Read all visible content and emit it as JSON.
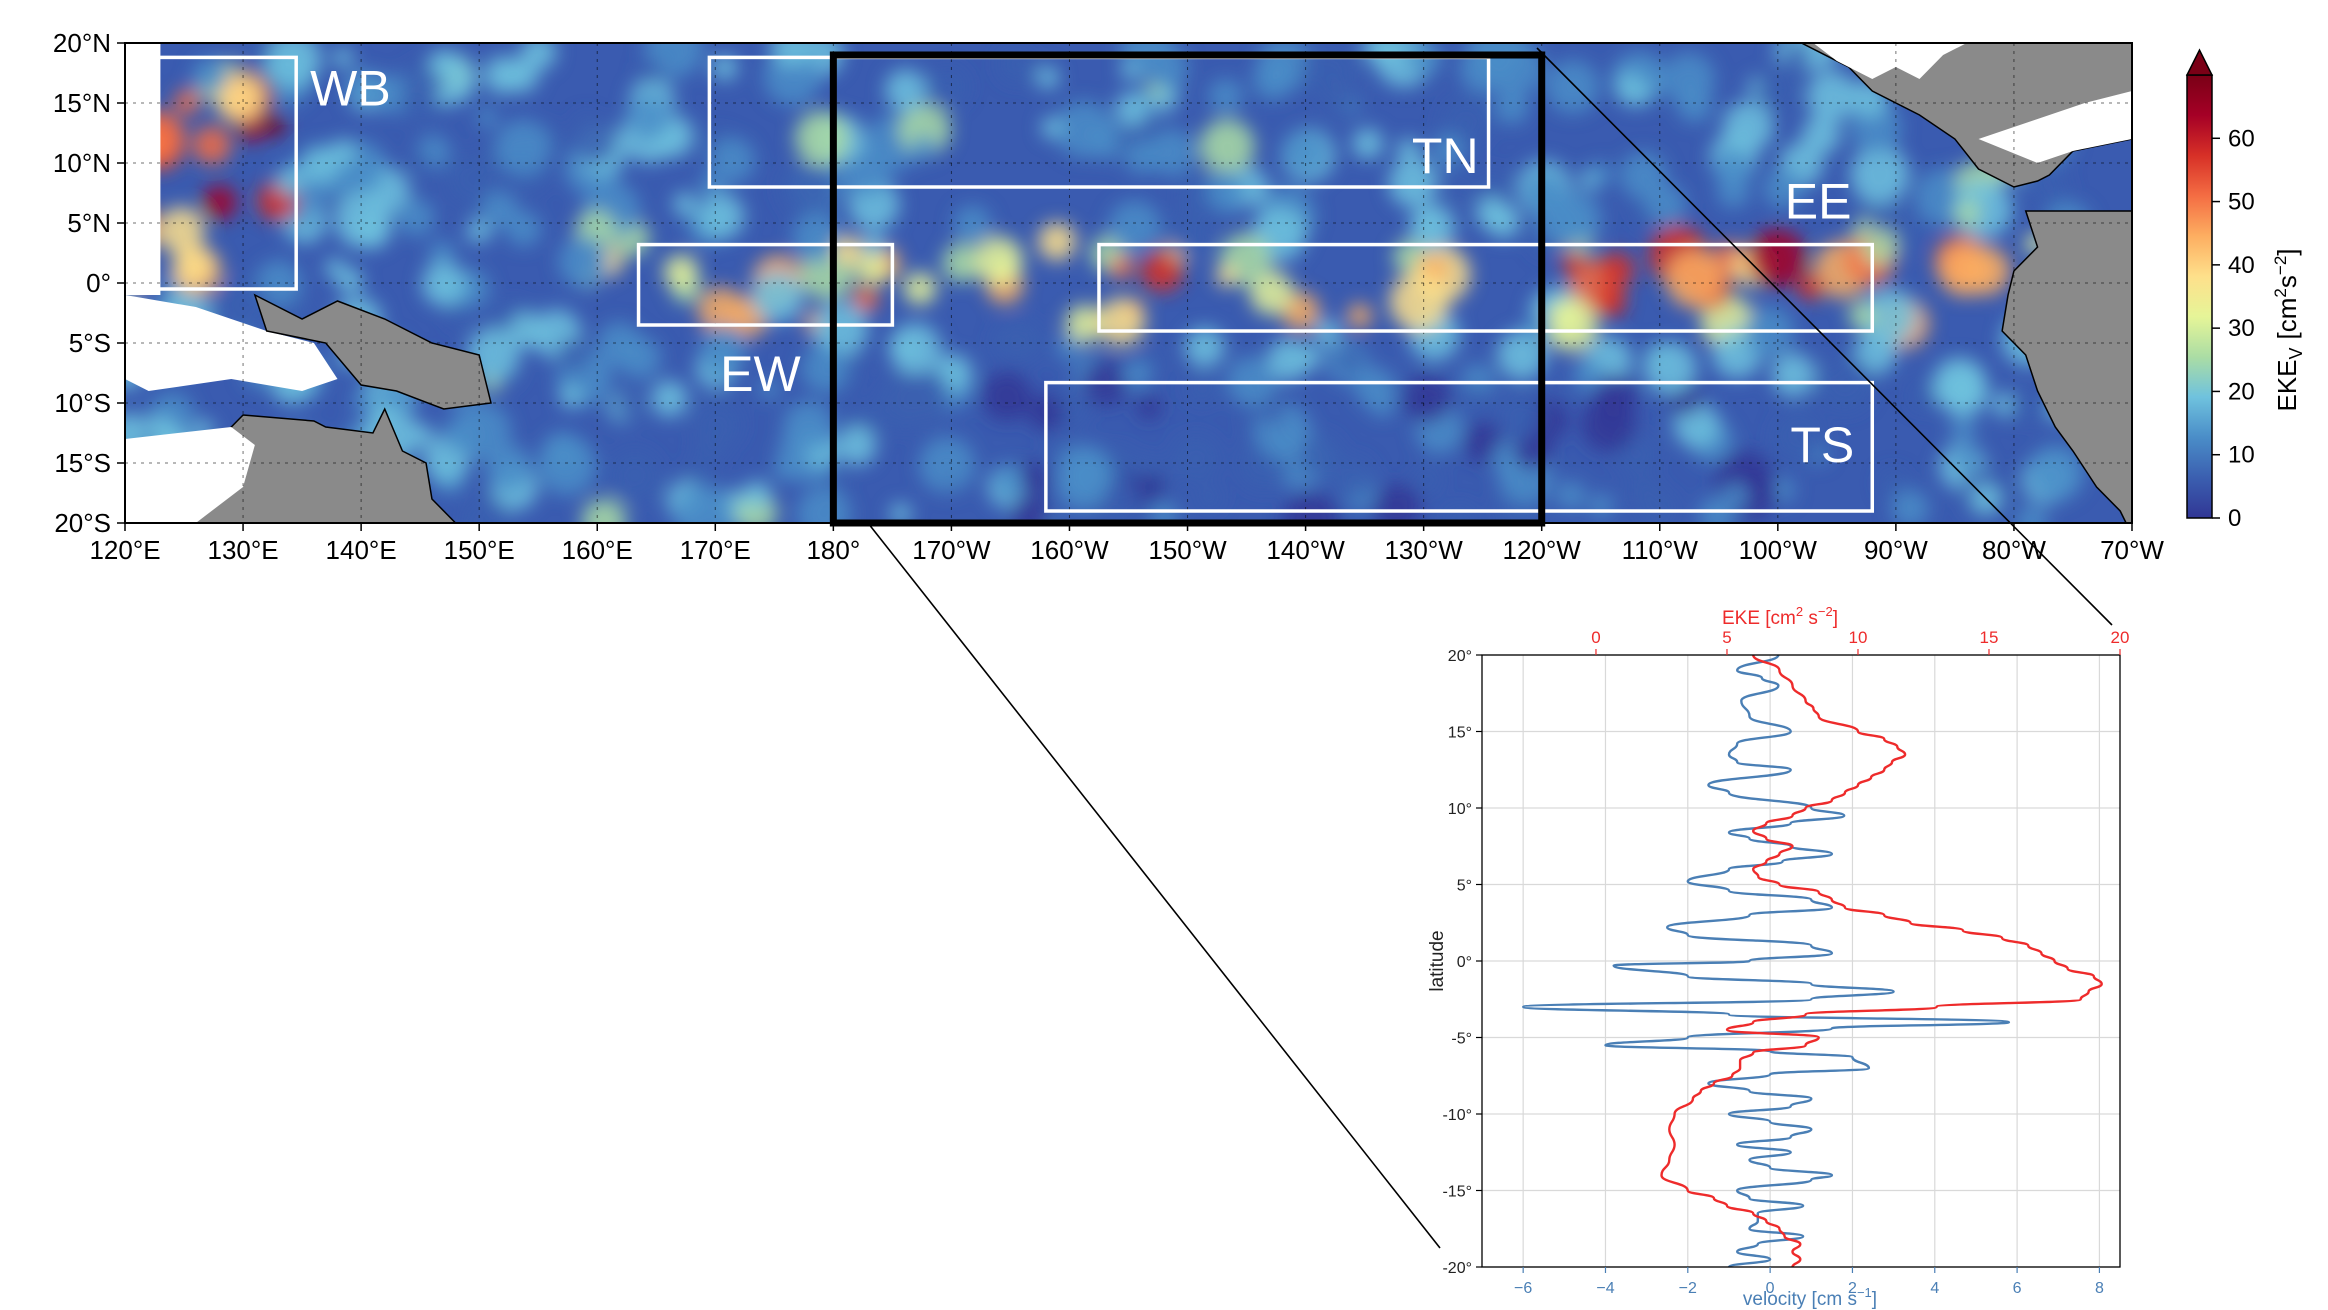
{
  "chart_data": [
    {
      "type": "heatmap",
      "title": "",
      "colorbar": {
        "label": "EKE",
        "label_sub": "V",
        "label_units_pre": "[cm",
        "label_units_exp1": "2",
        "label_units_mid": "s",
        "label_units_exp2": "−2",
        "label_units_post": "]",
        "ticks": [
          "0",
          "10",
          "20",
          "30",
          "40",
          "50",
          "60"
        ],
        "range": [
          0,
          70
        ],
        "extend": "max",
        "colormap": [
          "#313695",
          "#3b5fb0",
          "#4a8dc8",
          "#6fc2de",
          "#abdda4",
          "#e6f598",
          "#fee08b",
          "#fdae61",
          "#f46d43",
          "#d73027",
          "#a50026",
          "#7a0016"
        ]
      },
      "lat_ticks": [
        "20°N",
        "15°N",
        "10°N",
        "5°N",
        "0°",
        "5°S",
        "10°S",
        "15°S",
        "20°S"
      ],
      "lon_ticks": [
        "120°E",
        "130°E",
        "140°E",
        "150°E",
        "160°E",
        "170°E",
        "180°",
        "170°W",
        "160°W",
        "150°W",
        "140°W",
        "130°W",
        "120°W",
        "110°W",
        "100°W",
        "90°W",
        "80°W",
        "70°W"
      ],
      "extent": {
        "lon": [
          120,
          290
        ],
        "lat": [
          -20,
          20
        ]
      },
      "regions": [
        {
          "label": "WB",
          "lon": [
            122.5,
            134.5
          ],
          "lat": [
            -0.5,
            18.8
          ]
        },
        {
          "label": "TN",
          "lon": [
            169.5,
            235.5
          ],
          "lat": [
            8,
            18.8
          ]
        },
        {
          "label": "EW",
          "lon": [
            163.5,
            185
          ],
          "lat": [
            -3.5,
            3.2
          ]
        },
        {
          "label": "EE",
          "lon": [
            202.5,
            268
          ],
          "lat": [
            -4,
            3.2
          ]
        },
        {
          "label": "TS",
          "lon": [
            198,
            268
          ],
          "lat": [
            -19,
            -8.3
          ]
        }
      ],
      "highlight_box": {
        "lon": [
          180,
          240
        ],
        "lat": [
          -20,
          19
        ]
      },
      "grid": true
    },
    {
      "type": "line",
      "title": "",
      "ylabel": "latitude",
      "xlabel_bottom": "velocity [cm s",
      "xlabel_bottom_exp": "−1",
      "xlabel_bottom_post": "]",
      "xlabel_top": "EKE [cm",
      "xlabel_top_exp1": "2",
      "xlabel_top_mid": " s",
      "xlabel_top_exp2": "−2",
      "xlabel_top_post": "]",
      "ylim": [
        -20,
        20
      ],
      "xlim_bottom": [
        -7,
        8.5
      ],
      "xlim_top": [
        -4.35,
        20
      ],
      "yticks": [
        "20°",
        "15°",
        "10°",
        "5°",
        "0°",
        "-5°",
        "-10°",
        "-15°",
        "-20°"
      ],
      "xticks_bottom": [
        "−6",
        "−4",
        "−2",
        "0",
        "2",
        "4",
        "6",
        "8"
      ],
      "xticks_top": [
        "0",
        "5",
        "10",
        "15",
        "20"
      ],
      "grid": true,
      "series": [
        {
          "name": "",
          "axis": "bottom",
          "color": "#4a7fb5",
          "lat": [
            20,
            19,
            18.5,
            18,
            17,
            16,
            15,
            14.2,
            13.5,
            13,
            12.5,
            11.5,
            11,
            10,
            9.5,
            9,
            8.4,
            8,
            7.5,
            7,
            6.5,
            6,
            5.2,
            4.6,
            4,
            3.5,
            3,
            2.2,
            1.7,
            1,
            0.5,
            0,
            -0.3,
            -1,
            -1.5,
            -2,
            -2.5,
            -3,
            -3.5,
            -4,
            -4.4,
            -5,
            -5.5,
            -5.9,
            -6.3,
            -7,
            -7.4,
            -8,
            -8.5,
            -9,
            -9.5,
            -10,
            -10.5,
            -11,
            -11.5,
            -12,
            -12.5,
            -13,
            -13.5,
            -14,
            -14.3,
            -15,
            -15.5,
            -16,
            -16.5,
            -17,
            -17.5,
            -18,
            -18.5,
            -19,
            -19.5,
            -20
          ],
          "values": [
            0.2,
            -0.8,
            -0.2,
            0.2,
            -0.7,
            -0.5,
            0.5,
            -0.8,
            -1,
            -0.8,
            0.5,
            -1.5,
            -1,
            1,
            1.8,
            0.5,
            -1,
            -0.5,
            0.5,
            1.5,
            0.3,
            -1,
            -2,
            -1,
            1,
            1.5,
            -0.5,
            -2.5,
            -2,
            1,
            1.5,
            -0.5,
            -3.8,
            -2,
            1,
            3,
            1,
            -6,
            -1,
            5.8,
            1.5,
            -2,
            -4,
            0,
            2,
            2.4,
            0,
            -1.5,
            -0.5,
            1,
            0.5,
            -1,
            0,
            1,
            0.5,
            -0.8,
            0.5,
            -0.5,
            0,
            1.5,
            1,
            -0.8,
            -0.5,
            0.8,
            -0.3,
            -0.3,
            -0.5,
            0.8,
            -0.3,
            -0.8,
            0,
            -1
          ]
        },
        {
          "name": "",
          "axis": "top",
          "color": "#ee2b2b",
          "lat": [
            20,
            19,
            18,
            17,
            16.5,
            16,
            15,
            14.5,
            14,
            13.5,
            13,
            12.5,
            12,
            11.5,
            11,
            10.5,
            10,
            9.5,
            9,
            8.5,
            8,
            7.5,
            7,
            6.5,
            6,
            5.5,
            5,
            4.5,
            4,
            3.5,
            3,
            2.5,
            2,
            1.5,
            1,
            0.5,
            0,
            -0.5,
            -1,
            -1.5,
            -2,
            -2.5,
            -3,
            -3.5,
            -4,
            -4.5,
            -5,
            -5.5,
            -6,
            -6.5,
            -7,
            -7.5,
            -8,
            -8.5,
            -9,
            -10,
            -11,
            -12,
            -13,
            -14,
            -15,
            -15.5,
            -16,
            -16.5,
            -17,
            -17.5,
            -18,
            -18.5,
            -19,
            -19.5,
            -20
          ],
          "values": [
            6,
            7,
            7.5,
            8,
            8.3,
            8.5,
            10,
            11,
            11.5,
            11.8,
            11.3,
            11,
            10.5,
            10,
            9.5,
            9,
            8,
            7.5,
            6.5,
            6,
            6.5,
            7.5,
            7,
            6.5,
            6,
            6.2,
            7,
            8.5,
            9,
            9.5,
            11,
            12,
            14,
            15.5,
            16.5,
            17,
            17.5,
            18,
            19,
            19.3,
            18.8,
            18.5,
            13,
            8,
            6,
            5,
            8.5,
            8,
            6,
            5.5,
            5.5,
            5.2,
            4.5,
            4,
            3.7,
            3,
            2.8,
            3,
            2.8,
            2.5,
            3.5,
            4.5,
            5,
            6,
            6.5,
            7,
            7.2,
            7.8,
            7.5,
            7.8,
            7.5
          ]
        }
      ]
    }
  ]
}
